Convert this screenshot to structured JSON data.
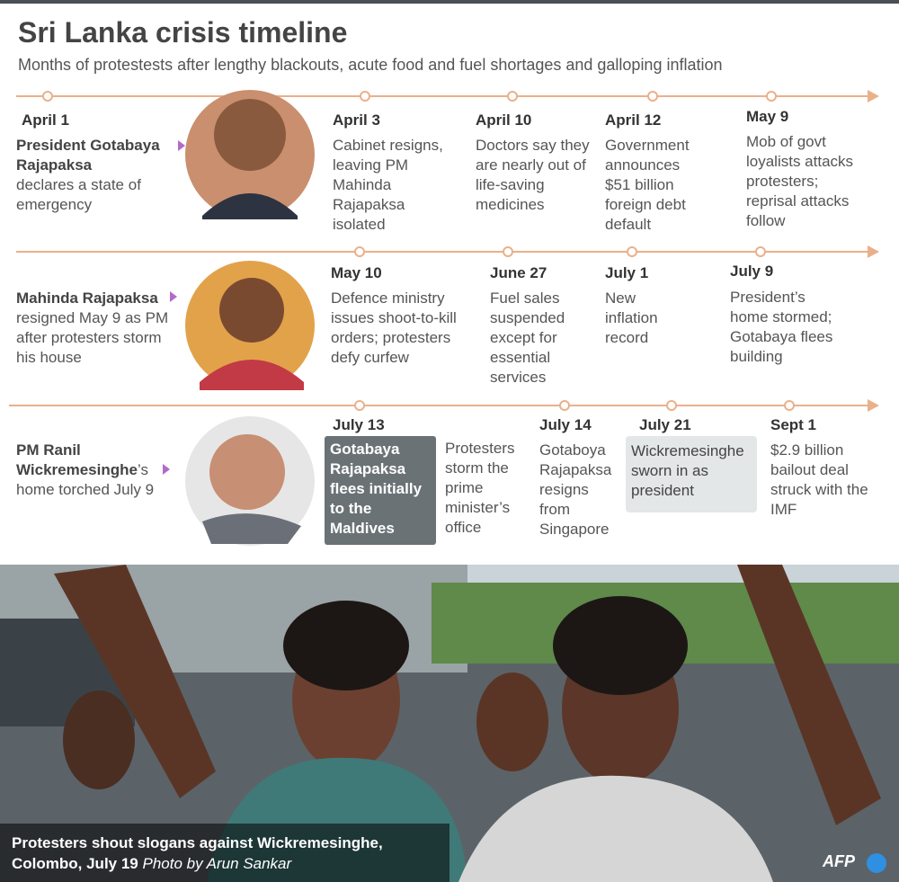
{
  "header": {
    "title": "Sri Lanka crisis timeline",
    "subtitle": "Months of protestests after lengthy blackouts, acute food and fuel shortages and galloping inflation"
  },
  "rows": [
    {
      "person": {
        "date": "April 1",
        "name": "President Gotabaya Rajapaksa",
        "text": "declares a state of emergency"
      },
      "events": [
        {
          "date": "April 3",
          "text": "Cabinet resigns, leaving PM Mahinda Rajapaksa isolated"
        },
        {
          "date": "April 10",
          "text": "Doctors say they are nearly out of life-saving medicines"
        },
        {
          "date": "April 12",
          "text": "Government announces $51  billion foreign debt default"
        },
        {
          "date": "May 9",
          "text": "Mob of govt loyalists attacks protesters; reprisal attacks follow"
        }
      ]
    },
    {
      "person": {
        "name": "Mahinda Rajapaksa",
        "text": "resigned May 9 as PM after protesters storm his house"
      },
      "events": [
        {
          "date": "May 10",
          "text": "Defence ministry issues shoot-to-kill orders; protesters defy curfew"
        },
        {
          "date": "June 27",
          "text": "Fuel sales suspended except for essential services"
        },
        {
          "date": "July 1",
          "text": "New inflation record"
        },
        {
          "date": "July 9",
          "text": "President’s home stormed; Gotabaya flees building"
        }
      ]
    },
    {
      "person": {
        "name": "PM Ranil Wickremesinghe",
        "text": "’s home torched July 9"
      },
      "events": [
        {
          "date": "July 13",
          "text": "Gotabaya Rajapaksa flees initially to the Maldives",
          "note": "Protesters storm the prime minister’s office"
        },
        {
          "date": "July 14",
          "text": "Gotaboya Rajapaksa resigns from Singapore"
        },
        {
          "date": "July 21",
          "text": "Wickremesinghe sworn in as president"
        },
        {
          "date": "Sept 1",
          "text": "$2.9 billion bailout deal struck with the IMF"
        }
      ]
    }
  ],
  "caption": {
    "text": "Protesters shout slogans against Wickremesinghe, Colombo, July 19",
    "credit": "Photo by Arun Sankar"
  },
  "logo": "AFP"
}
